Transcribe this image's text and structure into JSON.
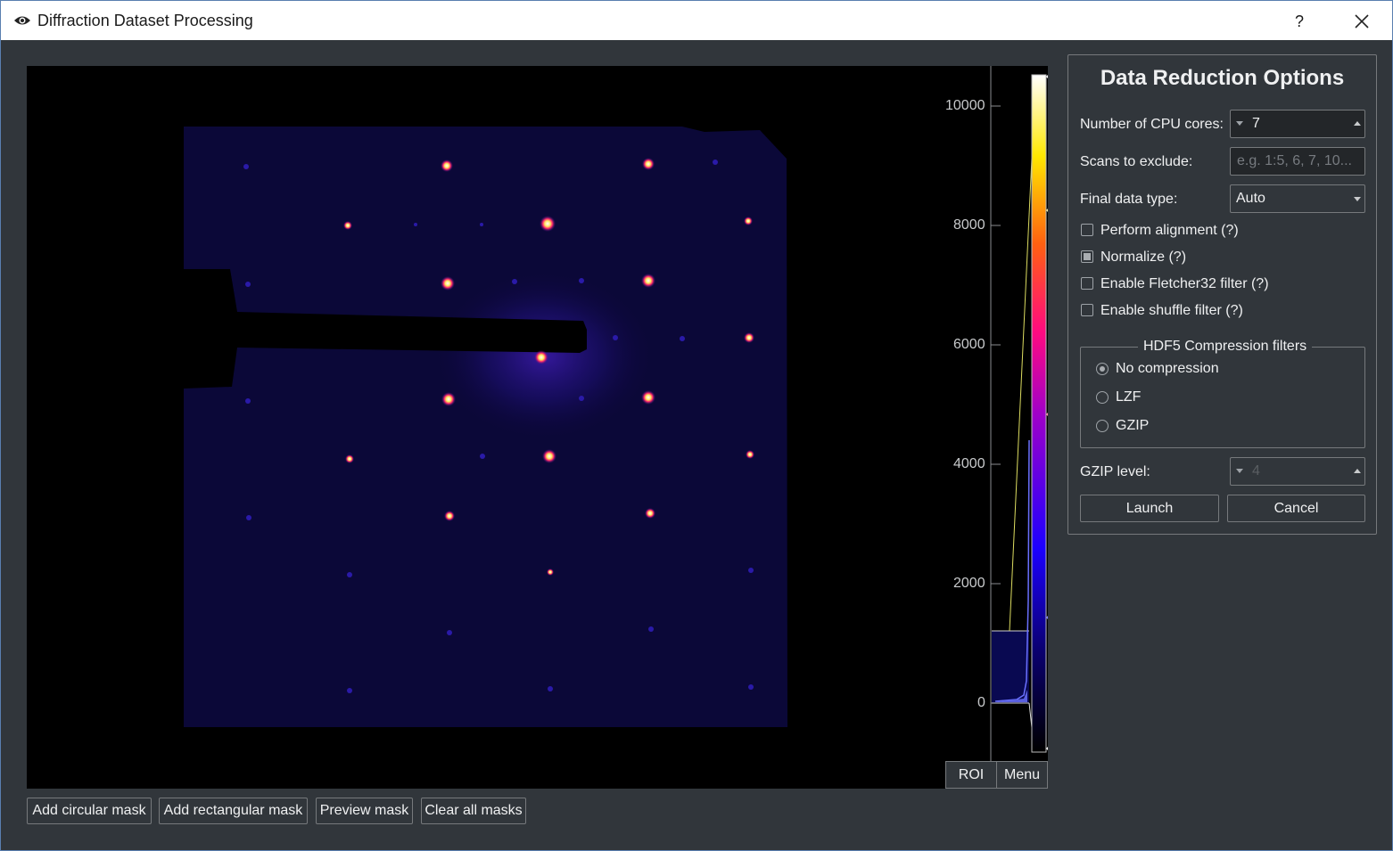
{
  "window": {
    "title": "Diffraction Dataset Processing",
    "help_label": "?",
    "icon": "eye-icon",
    "close_icon": "close-icon"
  },
  "viewer": {
    "histogram_ticks": [
      "10000",
      "8000",
      "6000",
      "4000",
      "2000",
      "0"
    ],
    "roi_label": "ROI",
    "menu_label": "Menu",
    "colormap": "gnuplot"
  },
  "mask_buttons": {
    "circular": "Add circular mask",
    "rectangular": "Add rectangular mask",
    "preview": "Preview mask",
    "clear": "Clear all masks"
  },
  "options": {
    "title": "Data Reduction Options",
    "cpu_cores": {
      "label": "Number of CPU cores:",
      "value": "7"
    },
    "exclude_scans": {
      "label": "Scans to exclude:",
      "placeholder": "e.g. 1:5, 6, 7, 10..."
    },
    "data_type": {
      "label": "Final data type:",
      "value": "Auto"
    },
    "checkboxes": [
      {
        "label": "Perform alignment (?)",
        "checked": false
      },
      {
        "label": "Normalize (?)",
        "checked": true
      },
      {
        "label": "Enable Fletcher32 filter (?)",
        "checked": false
      },
      {
        "label": "Enable shuffle filter (?)",
        "checked": false
      }
    ],
    "compression": {
      "title": "HDF5 Compression filters",
      "options": [
        {
          "label": "No compression",
          "selected": true
        },
        {
          "label": "LZF",
          "selected": false
        },
        {
          "label": "GZIP",
          "selected": false
        }
      ]
    },
    "gzip_level": {
      "label": "GZIP level:",
      "value": "4"
    },
    "launch_label": "Launch",
    "cancel_label": "Cancel"
  }
}
